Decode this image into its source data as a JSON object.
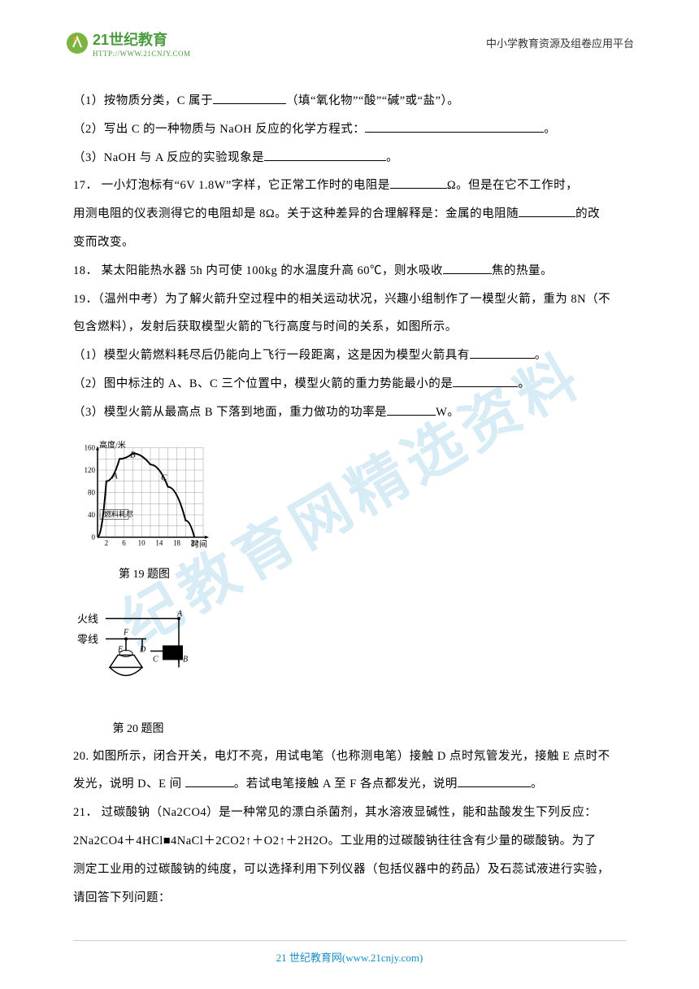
{
  "header": {
    "logo_main": "21世纪教育",
    "logo_sub": "HTTP://WWW.21CNJY.COM",
    "right_text": "中小学教育资源及组卷应用平台"
  },
  "questions": {
    "q16_1": "（1）按物质分类，C 属于",
    "q16_1_hint": "（填“氧化物”“酸”“碱”或“盐”）。",
    "q16_2": "（2）写出 C 的一种物质与 NaOH 反应的化学方程式：",
    "q16_2_end": "。",
    "q16_3": "（3）NaOH 与 A 反应的实验现象是",
    "q16_3_end": "。",
    "q17_a": "17．  一小灯泡标有“6V   1.8W”字样，它正常工作时的电阻是",
    "q17_b": "Ω。但是在它不工作时，",
    "q17_c": "用测电阻的仪表测得它的电阻却是 8Ω。关于这种差异的合理解释是：金属的电阻随",
    "q17_d": "的改",
    "q17_e": "变而改变。",
    "q18_a": "18．  某太阳能热水器 5h 内可使 100kg 的水温度升高 60℃，则水吸收",
    "q18_b": "焦的热量。",
    "q19_a": "19．（温州中考）为了解火箭升空过程中的相关运动状况，兴趣小组制作了一模型火箭，重为 8N（不",
    "q19_b": "包含燃料），发射后获取模型火箭的飞行高度与时间的关系，如图所示。",
    "q19_1": "（1）模型火箭燃料耗尽后仍能向上飞行一段距离，这是因为模型火箭具有",
    "q19_1_end": "。",
    "q19_2": "（2）图中标注的 A、B、C 三个位置中，模型火箭的重力势能最小的是",
    "q19_2_end": "。",
    "q19_3": "（3）模型火箭从最高点 B 下落到地面，重力做功的功率是",
    "q19_3_end": "W。",
    "q20_a": "20. 如图所示，闭合开关，电灯不亮，用试电笔（也称测电笔）接触 D 点时氖管发光，接触 E 点时不",
    "q20_b": "发光，说明 D、E 间 ",
    "q20_c": "。若试电笔接触 A 至 F 各点都发光，说明",
    "q20_d": "。",
    "q21_a": "21．  过碳酸钠（Na2CO4）是一种常见的漂白杀菌剂，其水溶液显碱性，能和盐酸发生下列反应：",
    "q21_b": "2Na2CO4＋4HCl■4NaCl＋2CO2↑＋O2↑＋2H2O。工业用的过碳酸钠往往含有少量的碳酸钠。为了",
    "q21_c": "测定工业用的过碳酸钠的纯度，可以选择利用下列仪器（包括仪器中的药品）及石蕊试液进行实验，",
    "q21_d": "请回答下列问题："
  },
  "chart19": {
    "y_label": "高度/米",
    "x_label": "时间",
    "y_ticks": [
      0,
      40,
      80,
      120,
      160
    ],
    "x_ticks": [
      2,
      6,
      10,
      14,
      18,
      22
    ],
    "caption": "第 19 题图",
    "annotation": "燃料耗尽",
    "points": [
      "A",
      "B",
      "C"
    ],
    "curve_data": [
      {
        "x": 0,
        "y": 0
      },
      {
        "x": 2,
        "y": 100
      },
      {
        "x": 5,
        "y": 140
      },
      {
        "x": 8,
        "y": 150
      },
      {
        "x": 12,
        "y": 130
      },
      {
        "x": 16,
        "y": 90
      },
      {
        "x": 20,
        "y": 30
      },
      {
        "x": 22,
        "y": 0
      }
    ],
    "colors": {
      "grid": "#888888",
      "curve": "#000000",
      "axis": "#000000"
    }
  },
  "circuit20": {
    "caption": "第 20 题图",
    "labels": {
      "fire": "火线",
      "zero": "零线",
      "points": [
        "A",
        "B",
        "C",
        "D",
        "E",
        "F"
      ]
    }
  },
  "footer": {
    "text_prefix": "21 世纪教育网",
    "url": "(www.21cnjy.com)"
  }
}
